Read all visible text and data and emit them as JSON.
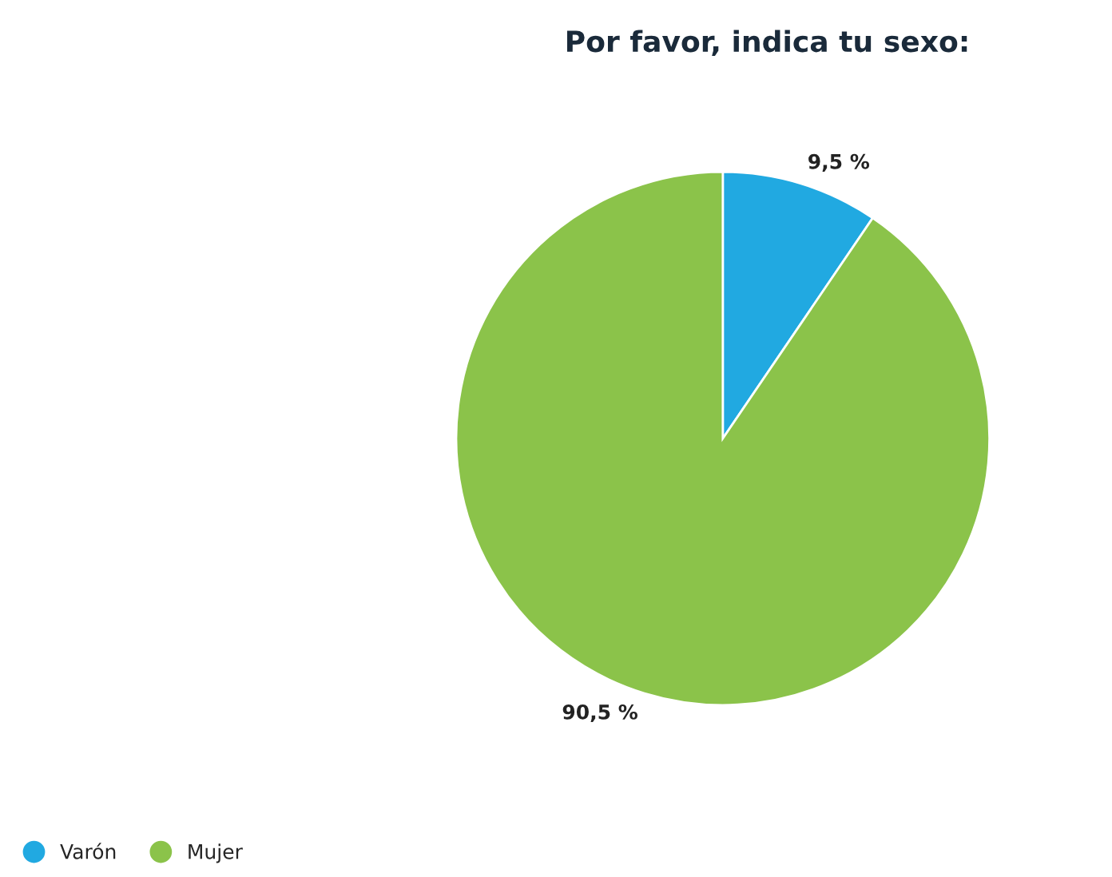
{
  "chart_data": {
    "type": "pie",
    "title": "Por favor, indica tu sexo:",
    "categories": [
      "Varón",
      "Mujer"
    ],
    "values": [
      9.5,
      90.5
    ],
    "colors": [
      "#21a9e1",
      "#8bc34a"
    ],
    "value_labels": [
      "9,5 %",
      "90,5 %"
    ],
    "legend": "bottom left"
  }
}
